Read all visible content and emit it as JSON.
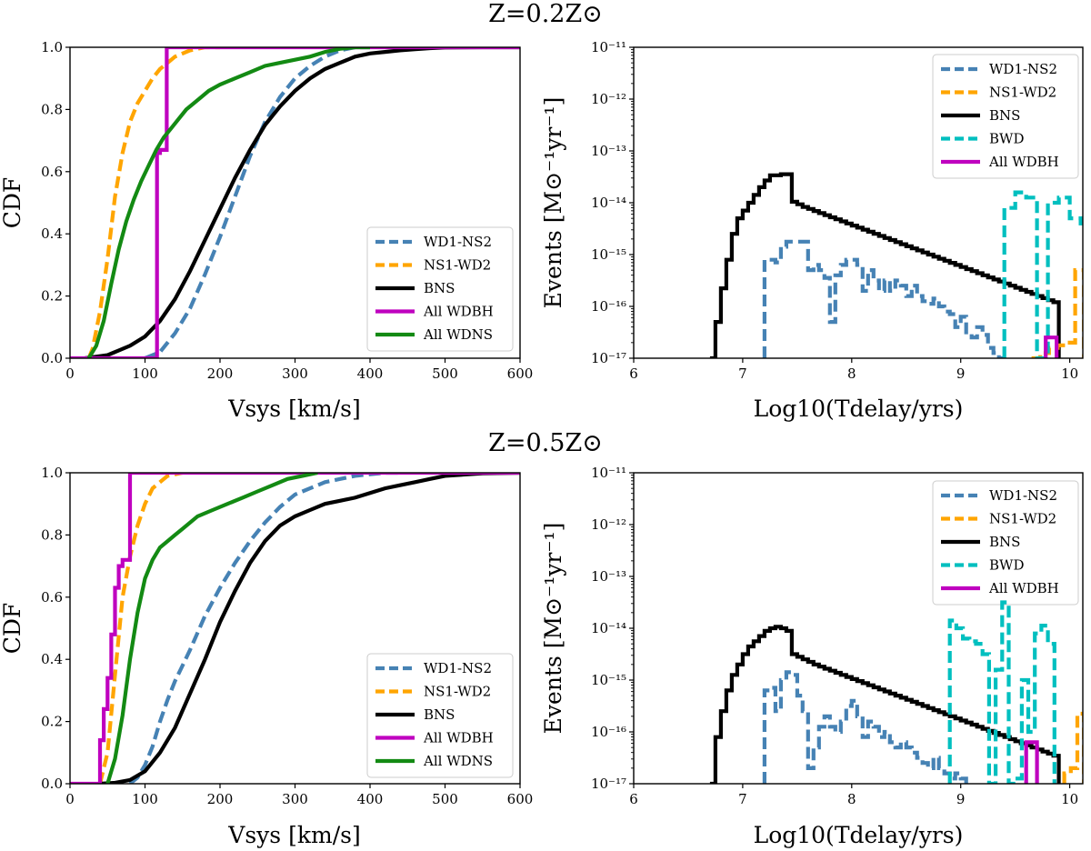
{
  "figure": {
    "titles": [
      "Z=0.2Z⊙",
      "Z=0.5Z⊙"
    ]
  },
  "colors": {
    "WD1-NS2": "#4682b4",
    "NS1-WD2": "#ffa500",
    "BNS": "#000000",
    "BWD": "#00bfbf",
    "All WDBH": "#bf00bf",
    "All WDNS": "#138a13"
  },
  "chart_data": [
    {
      "id": "cdf-top",
      "type": "line",
      "ylabel": "CDF",
      "xlabel": "Vsys [km/s]",
      "xlim": [
        0,
        600
      ],
      "ylim": [
        0,
        1
      ],
      "xticks": [
        "0",
        "100",
        "200",
        "300",
        "400",
        "500",
        "600"
      ],
      "yticks": [
        "0.0",
        "0.2",
        "0.4",
        "0.6",
        "0.8",
        "1.0"
      ],
      "legend_position": "lower-right",
      "legend": [
        "WD1-NS2",
        "NS1-WD2",
        "BNS",
        "All WDBH",
        "All WDNS"
      ],
      "series": [
        {
          "name": "WD1-NS2",
          "style": "dashed",
          "x": [
            100,
            120,
            140,
            160,
            180,
            200,
            220,
            240,
            260,
            280,
            300,
            320,
            340,
            360,
            380,
            400
          ],
          "y": [
            0,
            0.02,
            0.08,
            0.16,
            0.27,
            0.39,
            0.52,
            0.65,
            0.76,
            0.84,
            0.9,
            0.94,
            0.97,
            0.99,
            1.0,
            1.0
          ]
        },
        {
          "name": "NS1-WD2",
          "style": "dashed",
          "x": [
            25,
            30,
            40,
            50,
            60,
            70,
            80,
            90,
            100,
            110,
            120,
            130,
            140,
            160,
            180,
            200
          ],
          "y": [
            0,
            0.03,
            0.15,
            0.32,
            0.52,
            0.66,
            0.76,
            0.82,
            0.86,
            0.9,
            0.93,
            0.95,
            0.97,
            0.99,
            1.0,
            1.0
          ]
        },
        {
          "name": "BNS",
          "style": "solid",
          "x": [
            20,
            50,
            80,
            100,
            120,
            140,
            160,
            180,
            200,
            220,
            240,
            260,
            280,
            300,
            320,
            340,
            360,
            380,
            400,
            420,
            440,
            460,
            480,
            500,
            550,
            600
          ],
          "y": [
            0,
            0.01,
            0.04,
            0.07,
            0.12,
            0.19,
            0.28,
            0.38,
            0.48,
            0.58,
            0.67,
            0.75,
            0.81,
            0.86,
            0.9,
            0.93,
            0.95,
            0.97,
            0.98,
            0.985,
            0.99,
            0.994,
            0.997,
            0.999,
            1.0,
            1.0
          ]
        },
        {
          "name": "All WDBH",
          "style": "step",
          "x": [
            0,
            116,
            116,
            120,
            120,
            129,
            129,
            600
          ],
          "y": [
            0,
            0,
            0.66,
            0.66,
            0.67,
            0.67,
            1.0,
            1.0
          ]
        },
        {
          "name": "All WDNS",
          "style": "solid",
          "x": [
            25,
            35,
            45,
            55,
            65,
            75,
            85,
            95,
            105,
            115,
            125,
            135,
            145,
            155,
            165,
            175,
            185,
            200,
            220,
            240,
            260,
            280,
            300,
            320,
            340,
            360,
            380,
            400
          ],
          "y": [
            0,
            0.04,
            0.12,
            0.24,
            0.35,
            0.44,
            0.51,
            0.57,
            0.62,
            0.67,
            0.71,
            0.74,
            0.77,
            0.8,
            0.82,
            0.84,
            0.86,
            0.88,
            0.9,
            0.92,
            0.94,
            0.95,
            0.96,
            0.97,
            0.985,
            0.995,
            1.0,
            1.0
          ]
        }
      ]
    },
    {
      "id": "hist-top",
      "type": "line",
      "ylabel": "Events [M⊙⁻¹yr⁻¹]",
      "xlabel": "Log10(Tdelay/yrs)",
      "xlim": [
        6,
        10.12
      ],
      "ylim_log10": [
        -17,
        -11
      ],
      "xticks": [
        "6",
        "7",
        "8",
        "9",
        "10"
      ],
      "yticks": [
        "10⁻¹⁷",
        "10⁻¹⁶",
        "10⁻¹⁵",
        "10⁻¹⁴",
        "10⁻¹³",
        "10⁻¹²",
        "10⁻¹¹"
      ],
      "legend_position": "upper-right",
      "legend": [
        "WD1-NS2",
        "NS1-WD2",
        "BNS",
        "BWD",
        "All WDBH"
      ],
      "series": [
        {
          "name": "BNS",
          "style": "solid",
          "x0": 6.7,
          "dx": 0.05,
          "log10y": [
            -17,
            -16.3,
            -15.65,
            -15.1,
            -14.6,
            -14.3,
            -14.15,
            -14.0,
            -13.85,
            -13.7,
            -13.57,
            -13.47,
            -13.47,
            -13.45,
            -13.45,
            -13.98,
            -14.03,
            -14.08,
            -14.12,
            -14.16,
            -14.2,
            -14.24,
            -14.28,
            -14.32,
            -14.36,
            -14.4,
            -14.44,
            -14.48,
            -14.52,
            -14.56,
            -14.6,
            -14.64,
            -14.68,
            -14.72,
            -14.76,
            -14.8,
            -14.84,
            -14.88,
            -14.92,
            -14.96,
            -15.0,
            -15.04,
            -15.08,
            -15.12,
            -15.16,
            -15.2,
            -15.24,
            -15.28,
            -15.32,
            -15.36,
            -15.4,
            -15.44,
            -15.48,
            -15.52,
            -15.56,
            -15.6,
            -15.64,
            -15.68,
            -15.72,
            -15.76,
            -15.8,
            -15.84,
            -15.88,
            -15.92
          ]
        },
        {
          "name": "WD1-NS2",
          "style": "dashed",
          "x0": 7.2,
          "dx": 0.05,
          "log10y": [
            -15.1,
            -15.1,
            -15.15,
            -14.85,
            -14.75,
            -14.75,
            -14.75,
            -14.75,
            -15.3,
            -15.2,
            -15.3,
            -15.45,
            -16.3,
            -15.4,
            -15.2,
            -15.1,
            -15.1,
            -15.2,
            -15.7,
            -15.3,
            -15.5,
            -15.7,
            -15.5,
            -15.7,
            -15.5,
            -15.6,
            -15.8,
            -15.6,
            -15.8,
            -15.9,
            -15.95,
            -15.85,
            -16.0,
            -16.1,
            -16.15,
            -16.4,
            -16.2,
            -16.5,
            -16.6,
            -16.4,
            -16.55,
            -16.8,
            -16.9,
            -17.0
          ]
        },
        {
          "name": "NS1-WD2",
          "style": "dashed",
          "x0": 9.65,
          "dx": 0.08,
          "log10y": [
            -17.0,
            -16.9,
            -16.8,
            -16.75,
            -16.7,
            -15.3
          ]
        },
        {
          "name": "BWD",
          "style": "dashed",
          "x0": 9.4,
          "dx": 0.1,
          "log10y": [
            -14.1,
            -13.8,
            -13.9,
            -17.0,
            -14.0,
            -13.9,
            -14.3,
            -14.4
          ]
        },
        {
          "name": "All WDBH",
          "style": "solid",
          "x0": 9.78,
          "dx": 0.1,
          "log10y": [
            -16.6
          ]
        }
      ]
    },
    {
      "id": "cdf-bottom",
      "type": "line",
      "ylabel": "CDF",
      "xlabel": "Vsys [km/s]",
      "xlim": [
        0,
        600
      ],
      "ylim": [
        0,
        1
      ],
      "xticks": [
        "0",
        "100",
        "200",
        "300",
        "400",
        "500",
        "600"
      ],
      "yticks": [
        "0.0",
        "0.2",
        "0.4",
        "0.6",
        "0.8",
        "1.0"
      ],
      "legend_position": "lower-right",
      "legend": [
        "WD1-NS2",
        "NS1-WD2",
        "BNS",
        "All WDBH",
        "All WDNS"
      ],
      "series": [
        {
          "name": "WD1-NS2",
          "style": "dashed",
          "x": [
            80,
            90,
            100,
            110,
            120,
            130,
            140,
            150,
            160,
            180,
            200,
            220,
            240,
            260,
            280,
            300,
            320,
            340,
            360,
            380,
            400,
            420,
            440
          ],
          "y": [
            0,
            0.02,
            0.06,
            0.12,
            0.2,
            0.27,
            0.33,
            0.38,
            0.43,
            0.54,
            0.63,
            0.71,
            0.78,
            0.84,
            0.89,
            0.93,
            0.95,
            0.97,
            0.98,
            0.99,
            0.995,
            1.0,
            1.0
          ]
        },
        {
          "name": "NS1-WD2",
          "style": "dashed",
          "x": [
            40,
            50,
            60,
            70,
            80,
            90,
            100,
            110,
            120,
            130,
            150
          ],
          "y": [
            0,
            0.1,
            0.35,
            0.6,
            0.73,
            0.83,
            0.9,
            0.95,
            0.97,
            0.99,
            1.0
          ]
        },
        {
          "name": "BNS",
          "style": "solid",
          "x": [
            40,
            60,
            80,
            100,
            120,
            140,
            160,
            180,
            200,
            220,
            240,
            260,
            280,
            300,
            320,
            340,
            360,
            380,
            400,
            420,
            440,
            460,
            480,
            500,
            550,
            600
          ],
          "y": [
            0,
            0.003,
            0.012,
            0.04,
            0.1,
            0.18,
            0.29,
            0.4,
            0.52,
            0.62,
            0.71,
            0.78,
            0.83,
            0.86,
            0.88,
            0.9,
            0.91,
            0.92,
            0.935,
            0.95,
            0.96,
            0.97,
            0.98,
            0.99,
            0.998,
            1.0
          ]
        },
        {
          "name": "All WDBH",
          "style": "step",
          "x": [
            0,
            40,
            40,
            45,
            45,
            50,
            50,
            55,
            55,
            60,
            60,
            65,
            65,
            70,
            70,
            80,
            80,
            600
          ],
          "y": [
            0,
            0,
            0.14,
            0.14,
            0.24,
            0.24,
            0.34,
            0.34,
            0.48,
            0.48,
            0.63,
            0.63,
            0.7,
            0.7,
            0.72,
            0.72,
            1.0,
            1.0
          ]
        },
        {
          "name": "All WDNS",
          "style": "solid",
          "x": [
            50,
            60,
            70,
            80,
            90,
            100,
            110,
            120,
            130,
            140,
            150,
            170,
            190,
            210,
            230,
            250,
            270,
            290,
            310,
            330
          ],
          "y": [
            0,
            0.08,
            0.22,
            0.4,
            0.55,
            0.66,
            0.72,
            0.76,
            0.78,
            0.8,
            0.82,
            0.86,
            0.88,
            0.9,
            0.92,
            0.94,
            0.96,
            0.98,
            0.99,
            1.0
          ]
        }
      ]
    },
    {
      "id": "hist-bottom",
      "type": "line",
      "ylabel": "Events [M⊙⁻¹yr⁻¹]",
      "xlabel": "Log10(Tdelay/yrs)",
      "xlim": [
        6,
        10.12
      ],
      "ylim_log10": [
        -17,
        -11
      ],
      "xticks": [
        "6",
        "7",
        "8",
        "9",
        "10"
      ],
      "yticks": [
        "10⁻¹⁷",
        "10⁻¹⁶",
        "10⁻¹⁵",
        "10⁻¹⁴",
        "10⁻¹³",
        "10⁻¹²",
        "10⁻¹¹"
      ],
      "legend_position": "upper-right",
      "legend": [
        "WD1-NS2",
        "NS1-WD2",
        "BNS",
        "BWD",
        "All WDBH"
      ],
      "series": [
        {
          "name": "BNS",
          "style": "solid",
          "x0": 6.7,
          "dx": 0.05,
          "log10y": [
            -17,
            -16.1,
            -15.6,
            -15.2,
            -14.9,
            -14.7,
            -14.5,
            -14.35,
            -14.25,
            -14.15,
            -14.05,
            -14.0,
            -13.97,
            -14.0,
            -14.05,
            -14.5,
            -14.55,
            -14.6,
            -14.65,
            -14.7,
            -14.74,
            -14.78,
            -14.82,
            -14.86,
            -14.9,
            -14.94,
            -14.98,
            -15.02,
            -15.06,
            -15.1,
            -15.14,
            -15.18,
            -15.22,
            -15.26,
            -15.3,
            -15.34,
            -15.38,
            -15.42,
            -15.46,
            -15.5,
            -15.54,
            -15.58,
            -15.62,
            -15.66,
            -15.7,
            -15.74,
            -15.78,
            -15.82,
            -15.86,
            -15.9,
            -15.94,
            -15.98,
            -16.02,
            -16.06,
            -16.1,
            -16.14,
            -16.18,
            -16.22,
            -16.26,
            -16.3,
            -16.34,
            -16.38,
            -16.42,
            -16.46
          ]
        },
        {
          "name": "WD1-NS2",
          "style": "dashed",
          "x0": 7.2,
          "dx": 0.05,
          "log10y": [
            -15.2,
            -15.15,
            -15.6,
            -15.0,
            -14.85,
            -14.9,
            -15.3,
            -15.6,
            -16.7,
            -16.3,
            -15.9,
            -15.7,
            -15.9,
            -16.0,
            -15.8,
            -15.5,
            -15.4,
            -15.7,
            -16.1,
            -15.8,
            -15.9,
            -16.1,
            -16.0,
            -16.2,
            -16.3,
            -16.2,
            -16.3,
            -16.4,
            -16.5,
            -16.6,
            -16.7,
            -16.5,
            -16.7,
            -16.8,
            -16.9,
            -16.8,
            -16.9,
            -17.0
          ]
        },
        {
          "name": "NS1-WD2",
          "style": "dashed",
          "x0": 9.95,
          "dx": 0.06,
          "log10y": [
            -16.8,
            -16.7,
            -15.65
          ]
        },
        {
          "name": "BWD",
          "style": "dashed",
          "x0": 8.9,
          "dx": 0.06,
          "log10y": [
            -13.85,
            -14.0,
            -14.2,
            -14.25,
            -14.3,
            -14.5,
            -17.0,
            -14.8,
            -13.5,
            -17.0,
            -16.9,
            -15.0,
            -16.0,
            -14.1,
            -13.95,
            -14.3
          ]
        },
        {
          "name": "All WDBH",
          "style": "solid",
          "x0": 9.6,
          "dx": 0.1,
          "log10y": [
            -16.2
          ]
        }
      ]
    }
  ]
}
